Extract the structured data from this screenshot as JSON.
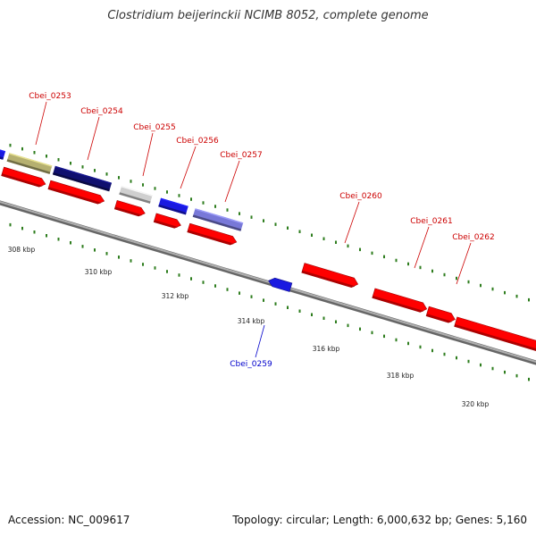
{
  "title": "Clostridium beijerinckii NCIMB 8052, complete genome",
  "footer": {
    "accession": "Accession: NC_009617",
    "summary": "Topology: circular; Length: 6,000,632 bp; Genes: 5,160"
  },
  "axis": {
    "ticks": [
      "308 kbp",
      "310 kbp",
      "312 kbp",
      "314 kbp",
      "316 kbp",
      "318 kbp",
      "320 kbp"
    ]
  },
  "genes": [
    {
      "id": "Cbei_0253",
      "color": "#b5b070"
    },
    {
      "id": "Cbei_0254",
      "color": "#10106e"
    },
    {
      "id": "Cbei_0255",
      "color": "#cfcfcf"
    },
    {
      "id": "Cbei_0256",
      "color": "#1a1ae0"
    },
    {
      "id": "Cbei_0257",
      "color": "#7878d8"
    },
    {
      "id": "Cbei_0259",
      "color": "#1a1ae0"
    },
    {
      "id": "Cbei_0260",
      "color": "#ff0000"
    },
    {
      "id": "Cbei_0261",
      "color": "#ff0000"
    },
    {
      "id": "Cbei_0262",
      "color": "#ff0000"
    }
  ],
  "colors": {
    "label_forward": "#cc0000",
    "label_reverse": "#0000cc",
    "cds": "#ff0000",
    "backbone": "#888888",
    "tick_dots": "#2e7d1e"
  }
}
